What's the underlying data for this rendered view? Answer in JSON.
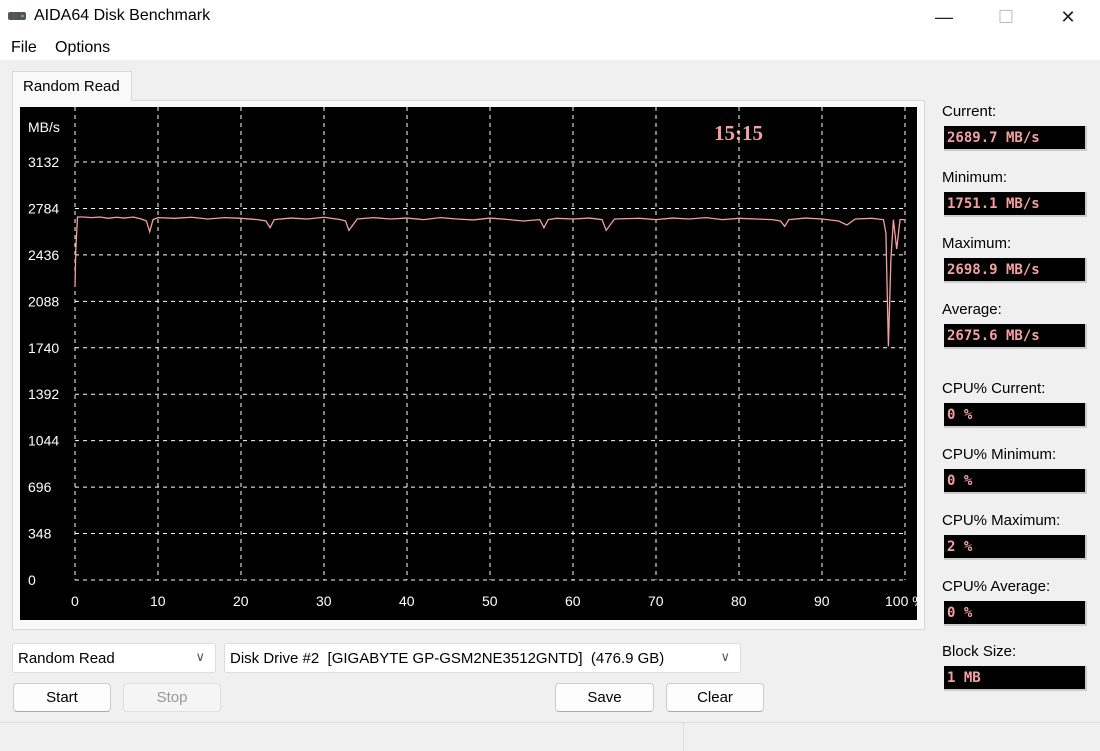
{
  "window": {
    "title": "AIDA64 Disk Benchmark",
    "minimize": "—",
    "maximize": "☐",
    "close": "✕"
  },
  "menu": [
    "File",
    "Options"
  ],
  "tab": "Random Read",
  "stats": [
    {
      "label": "Current:",
      "value": "2689.7 MB/s"
    },
    {
      "label": "Minimum:",
      "value": "1751.1 MB/s"
    },
    {
      "label": "Maximum:",
      "value": "2698.9 MB/s"
    },
    {
      "label": "Average:",
      "value": "2675.6 MB/s"
    },
    {
      "label": "CPU% Current:",
      "value": "0 %"
    },
    {
      "label": "CPU% Minimum:",
      "value": "0 %"
    },
    {
      "label": "CPU% Maximum:",
      "value": "2 %"
    },
    {
      "label": "CPU% Average:",
      "value": "0 %"
    },
    {
      "label": "Block Size:",
      "value": "1 MB"
    }
  ],
  "controls": {
    "test_select": "Random Read",
    "drive_select": "Disk Drive #2  [GIGABYTE GP-GSM2NE3512GNTD]  (476.9 GB)",
    "start": "Start",
    "stop": "Stop",
    "save": "Save",
    "clear": "Clear"
  },
  "colors": {
    "line": "#f4a0a0",
    "background": "#000000",
    "grid": "#ffffff",
    "time": "#f4a0a0"
  },
  "chart_data": {
    "type": "line",
    "ylabel": "MB/s",
    "time_label": "15:15",
    "yticks": [
      0,
      348,
      696,
      1044,
      1392,
      1740,
      2088,
      2436,
      2784,
      3132
    ],
    "xticks": [
      "0",
      "10",
      "20",
      "30",
      "40",
      "50",
      "60",
      "70",
      "80",
      "90",
      "100 %"
    ],
    "xlim": [
      0,
      100
    ],
    "ylim": [
      0,
      3132
    ],
    "grid": true,
    "x": [
      0,
      0.1,
      0.3,
      1,
      2,
      3,
      4,
      5,
      6,
      7,
      8,
      8.6,
      9,
      9.4,
      10,
      12,
      14,
      16,
      18,
      20,
      22,
      23,
      23.5,
      24,
      26,
      28,
      30,
      32,
      32.6,
      33,
      34,
      36,
      38,
      40,
      42,
      44,
      46,
      48,
      50,
      52,
      54,
      56,
      56.5,
      57,
      58,
      60,
      62,
      63.5,
      64,
      65,
      68,
      70,
      72,
      74,
      76,
      78,
      80,
      82,
      84,
      85,
      85.5,
      86,
      88,
      90,
      92,
      93,
      94,
      96,
      97.4,
      97.7,
      98,
      98.3,
      98.6,
      99,
      99.4,
      100
    ],
    "y": [
      2200,
      2480,
      2720,
      2720,
      2715,
      2720,
      2710,
      2718,
      2712,
      2720,
      2705,
      2690,
      2610,
      2700,
      2715,
      2710,
      2718,
      2705,
      2715,
      2710,
      2700,
      2690,
      2640,
      2700,
      2712,
      2705,
      2718,
      2700,
      2690,
      2620,
      2705,
      2715,
      2705,
      2712,
      2700,
      2715,
      2705,
      2698,
      2712,
      2702,
      2690,
      2700,
      2640,
      2700,
      2710,
      2705,
      2712,
      2700,
      2620,
      2705,
      2710,
      2700,
      2712,
      2705,
      2715,
      2700,
      2710,
      2705,
      2700,
      2690,
      2650,
      2700,
      2712,
      2705,
      2690,
      2660,
      2705,
      2710,
      2700,
      2600,
      1751,
      2400,
      2700,
      2480,
      2700,
      2700
    ]
  }
}
